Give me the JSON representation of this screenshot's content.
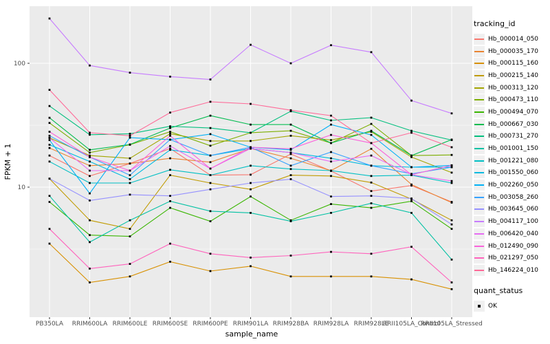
{
  "chart_data": {
    "type": "line",
    "title": "",
    "xlabel": "sample_name",
    "ylabel": "FPKM + 1",
    "y_scale": "log10",
    "y_tick_labels": [
      "10",
      "100"
    ],
    "y_ticks": [
      10,
      100
    ],
    "y_minor_ticks": [
      3.162,
      31.62
    ],
    "ylim": [
      0.9,
      290
    ],
    "grid": true,
    "legend_position": "right",
    "legend_titles": [
      "tracking_id",
      "quant_status"
    ],
    "quant_status": {
      "label": "OK",
      "marker": "black-square"
    },
    "categories": [
      "PB350LA",
      "RRIM600LA",
      "RRIM600LE",
      "RRIM600SE",
      "RRIM600PE",
      "RRIM901LA",
      "RRIM928BA",
      "RRIM928LA",
      "RRIM928LE",
      "RRII105LA_Control",
      "RRII105LA_Stressed"
    ],
    "series": [
      {
        "name": "Hb_000014_050",
        "color": "#F8766D",
        "values": [
          18.0,
          12.3,
          15.5,
          20.5,
          12.5,
          12.6,
          18.5,
          13.5,
          9.3,
          10.3,
          7.6
        ]
      },
      {
        "name": "Hb_000035_170",
        "color": "#EA8331",
        "values": [
          20.7,
          14.9,
          15.5,
          17.1,
          15.9,
          20.5,
          17.1,
          13.6,
          20.4,
          10.5,
          7.5
        ]
      },
      {
        "name": "Hb_000115_160",
        "color": "#D89000",
        "values": [
          3.5,
          1.7,
          1.9,
          2.5,
          2.1,
          2.3,
          1.9,
          1.9,
          1.9,
          1.8,
          1.5
        ]
      },
      {
        "name": "Hb_000215_140",
        "color": "#C09B00",
        "values": [
          11.7,
          5.4,
          4.6,
          12.5,
          10.8,
          9.6,
          12.5,
          12.3,
          10.9,
          8.0,
          5.4
        ]
      },
      {
        "name": "Hb_000313_120",
        "color": "#A3A500",
        "values": [
          25.0,
          18.0,
          17.1,
          27.0,
          23.6,
          23.6,
          26.0,
          24.0,
          28.0,
          17.5,
          13.1
        ]
      },
      {
        "name": "Hb_000473_110",
        "color": "#7CAE00",
        "values": [
          33.0,
          19.0,
          22.0,
          28.0,
          21.6,
          27.5,
          28.5,
          22.7,
          32.4,
          18.0,
          18.2
        ]
      },
      {
        "name": "Hb_000494_070",
        "color": "#39B600",
        "values": [
          7.6,
          4.1,
          4.0,
          6.8,
          5.3,
          8.4,
          5.4,
          7.3,
          6.8,
          7.7,
          4.6
        ]
      },
      {
        "name": "Hb_000667_030",
        "color": "#00BB4E",
        "values": [
          36.3,
          20.0,
          22.1,
          30.0,
          37.8,
          32.0,
          32.0,
          22.7,
          28.5,
          18.0,
          24.2
        ]
      },
      {
        "name": "Hb_000731_270",
        "color": "#00BF7D",
        "values": [
          45.2,
          26.5,
          27.0,
          31.0,
          30.0,
          27.5,
          41.0,
          34.6,
          36.4,
          28.5,
          24.0
        ]
      },
      {
        "name": "Hb_001001_150",
        "color": "#00C1A3",
        "values": [
          8.5,
          3.6,
          5.4,
          7.7,
          6.4,
          6.2,
          5.3,
          6.2,
          7.4,
          6.2,
          2.6
        ]
      },
      {
        "name": "Hb_001221_080",
        "color": "#00BFC4",
        "values": [
          16.1,
          10.8,
          10.8,
          13.8,
          12.5,
          14.9,
          14.0,
          13.6,
          12.3,
          12.5,
          10.8
        ]
      },
      {
        "name": "Hb_001550_060",
        "color": "#00BAE0",
        "values": [
          22.0,
          16.1,
          11.6,
          20.0,
          18.0,
          20.5,
          19.0,
          17.1,
          14.9,
          14.5,
          14.5
        ]
      },
      {
        "name": "Hb_002260_050",
        "color": "#00B0F6",
        "values": [
          24.0,
          8.9,
          25.1,
          24.2,
          26.8,
          21.0,
          20.0,
          32.0,
          26.4,
          14.5,
          15.0
        ]
      },
      {
        "name": "Hb_003058_260",
        "color": "#35A2FF",
        "values": [
          26.0,
          17.5,
          12.5,
          24.2,
          18.0,
          21.0,
          14.9,
          19.2,
          14.9,
          12.8,
          14.5
        ]
      },
      {
        "name": "Hb_003645_060",
        "color": "#9590FF",
        "values": [
          11.7,
          7.8,
          8.7,
          8.5,
          9.6,
          10.8,
          11.6,
          8.4,
          8.5,
          8.1,
          5.0
        ]
      },
      {
        "name": "Hb_004117_100",
        "color": "#C77CFF",
        "values": [
          230,
          96,
          84,
          78,
          74,
          141,
          100,
          140,
          123,
          50,
          39.4
        ]
      },
      {
        "name": "Hb_006420_040",
        "color": "#E76BF3",
        "values": [
          25.0,
          13.6,
          13.6,
          21.5,
          14.1,
          20.5,
          19.0,
          16.1,
          18.0,
          12.6,
          11.2
        ]
      },
      {
        "name": "Hb_012490_090",
        "color": "#FA62DB",
        "values": [
          28.0,
          17.5,
          13.6,
          26.0,
          14.1,
          21.0,
          20.4,
          26.4,
          22.7,
          12.6,
          15.0
        ]
      },
      {
        "name": "Hb_021297_050",
        "color": "#FF62BC",
        "values": [
          4.6,
          2.2,
          2.4,
          3.5,
          2.9,
          2.7,
          2.8,
          3.0,
          2.9,
          3.3,
          1.7
        ]
      },
      {
        "name": "Hb_146224_010",
        "color": "#FF6A98",
        "values": [
          61,
          27.5,
          26,
          40,
          48.9,
          47,
          41.8,
          37.8,
          22.7,
          27.5,
          21
        ]
      }
    ]
  },
  "colors": {
    "panel_bg": "#EBEBEB",
    "grid": "#FFFFFF",
    "legend_key_bg": "#F0F0F0",
    "tick_label": "#4D4D4D",
    "point": "#000000"
  }
}
